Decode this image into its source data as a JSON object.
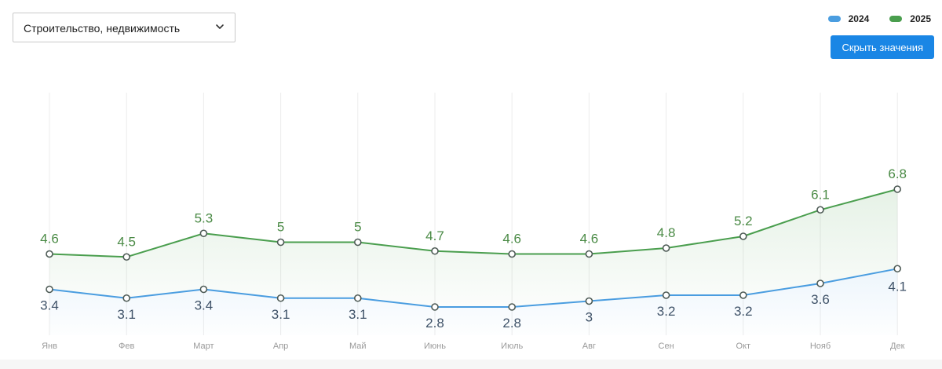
{
  "filter": {
    "selected": "Строительство, недвижимость",
    "icon": "chevron-down-icon"
  },
  "legend": [
    {
      "label": "2024",
      "color": "#4a9de0"
    },
    {
      "label": "2025",
      "color": "#4a9e4e"
    }
  ],
  "hide_values_button": "Скрыть значения",
  "chart_data": {
    "type": "line",
    "categories": [
      "Янв",
      "Фев",
      "Март",
      "Апр",
      "Май",
      "Июнь",
      "Июль",
      "Авг",
      "Сен",
      "Окт",
      "Нояб",
      "Дек"
    ],
    "series": [
      {
        "name": "2024",
        "color": "#4a9de0",
        "label_color": "#3f5268",
        "values": [
          3.4,
          3.1,
          3.4,
          3.1,
          3.1,
          2.8,
          2.8,
          3,
          3.2,
          3.2,
          3.6,
          4.1
        ]
      },
      {
        "name": "2025",
        "color": "#4a9e4e",
        "label_color": "#4a8a45",
        "values": [
          4.6,
          4.5,
          5.3,
          5,
          5,
          4.7,
          4.6,
          4.6,
          4.8,
          5.2,
          6.1,
          6.8
        ]
      }
    ],
    "grid": true,
    "data_labels": true
  }
}
